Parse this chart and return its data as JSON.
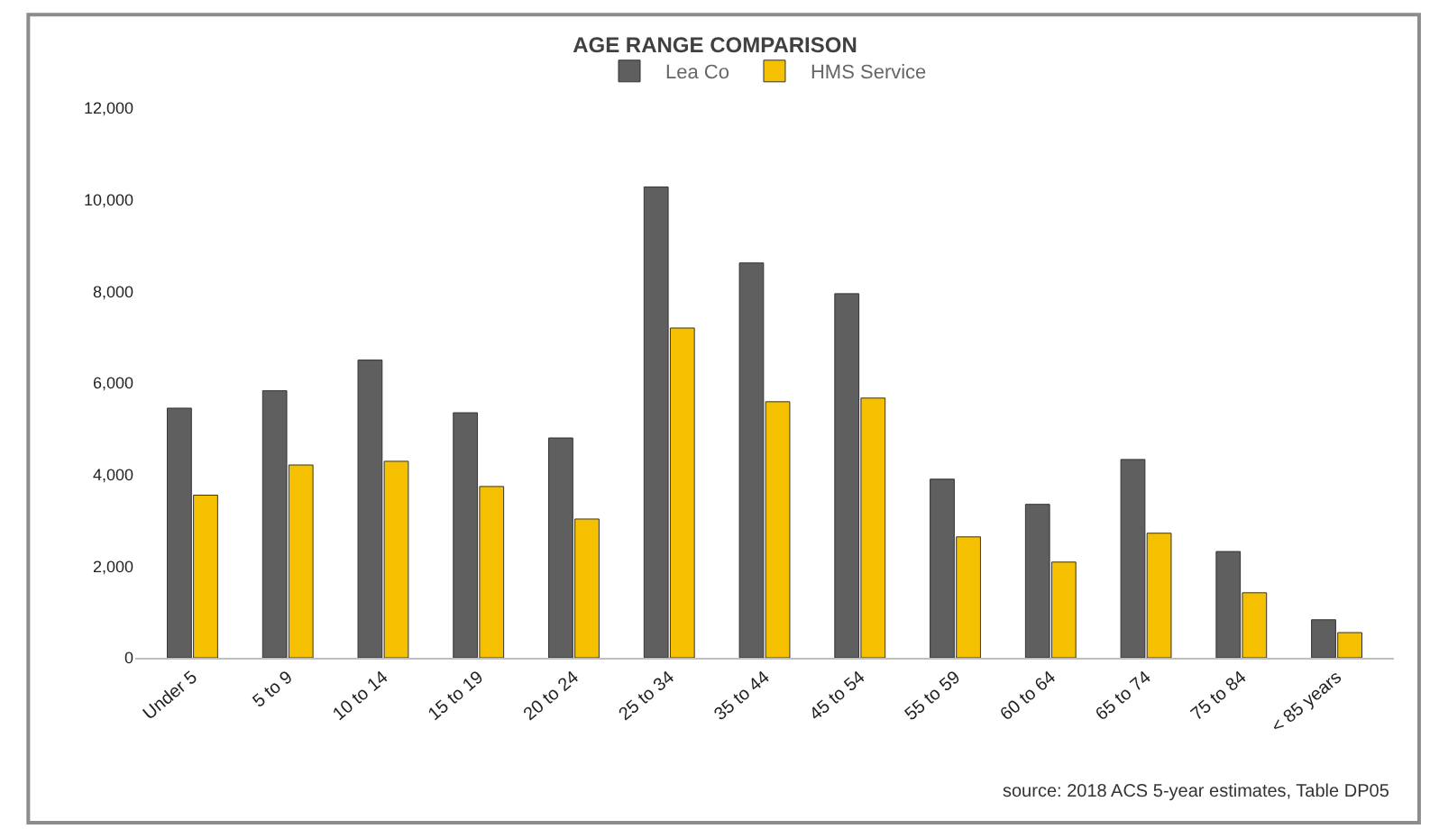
{
  "chart_data": {
    "type": "bar",
    "title": "AGE RANGE COMPARISON",
    "categories": [
      "Under 5",
      "5 to 9",
      "10 to 14",
      "15 to 19",
      "20 to 24",
      "25 to 34",
      "35 to 44",
      "45 to 54",
      "55 to 59",
      "60 to 64",
      "65 to 74",
      "75 to 84",
      "< 85 years"
    ],
    "series": [
      {
        "name": "Lea Co",
        "color": "#5f5f5f",
        "values": [
          5450,
          5830,
          6500,
          5350,
          4800,
          10280,
          8620,
          7950,
          3900,
          3350,
          4330,
          2320,
          830
        ]
      },
      {
        "name": "HMS Service",
        "color": "#f5c000",
        "values": [
          3550,
          4210,
          4290,
          3740,
          3030,
          7200,
          5590,
          5670,
          2640,
          2090,
          2720,
          1420,
          550
        ]
      }
    ],
    "ylim": [
      0,
      12000
    ],
    "yticks": [
      {
        "value": 0,
        "label": "0"
      },
      {
        "value": 2000,
        "label": "2,000"
      },
      {
        "value": 4000,
        "label": "4,000"
      },
      {
        "value": 6000,
        "label": "6,000"
      },
      {
        "value": 8000,
        "label": "8,000"
      },
      {
        "value": 10000,
        "label": "10,000"
      },
      {
        "value": 12000,
        "label": "12,000"
      }
    ],
    "legend": "top",
    "annotations": [
      "source: 2018 ACS 5-year estimates, Table DP05"
    ]
  }
}
